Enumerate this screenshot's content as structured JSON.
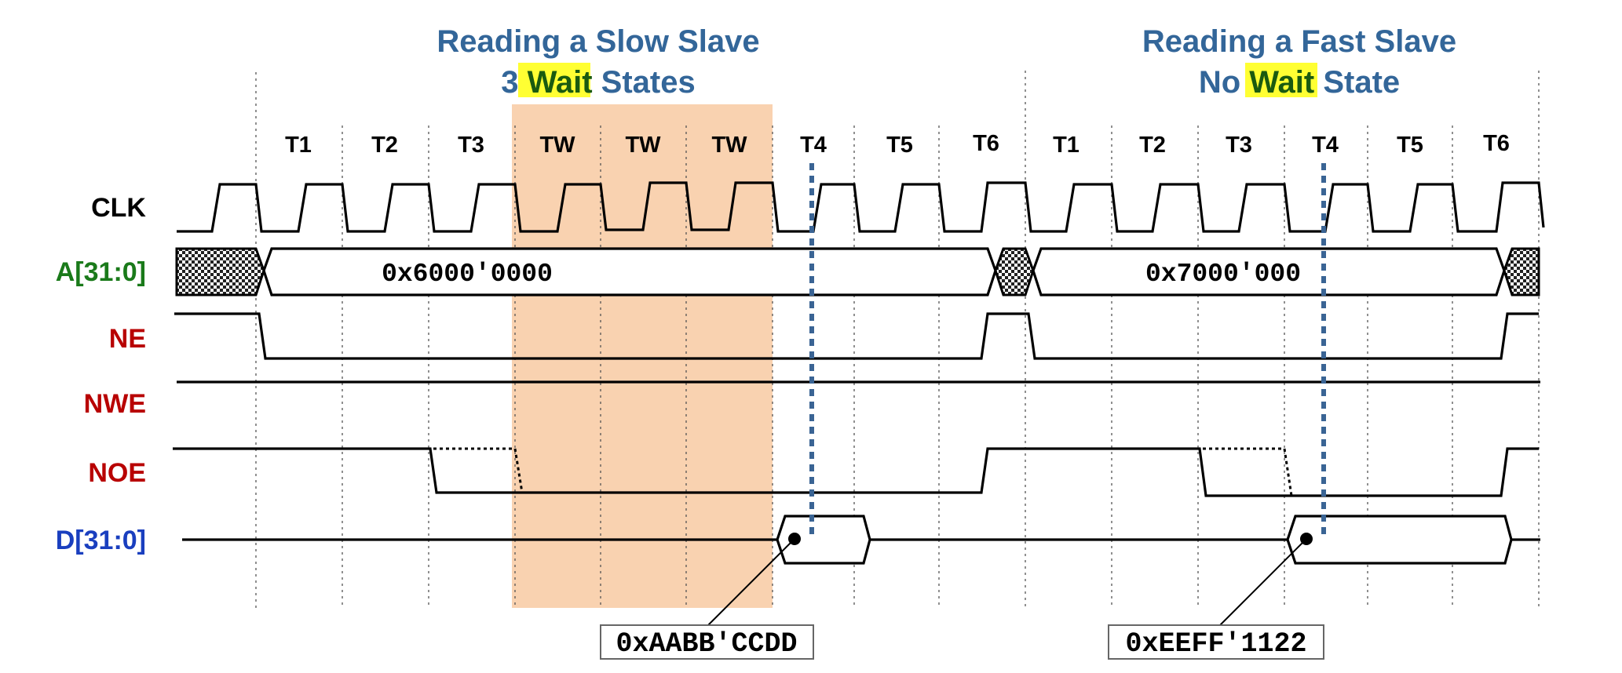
{
  "colors": {
    "title": "#336699",
    "address_signal": "#1a7a1a",
    "control_signal": "#b80000",
    "data_signal": "#1a3fbf",
    "wait_highlight": "#f9d2b0",
    "word_highlight": "#ffff33",
    "marker": "#3a6494"
  },
  "titles": {
    "slow": {
      "line1": "Reading a Slow Slave",
      "line2_pre": "3 ",
      "line2_highlight": "Wait",
      "line2_post": " States"
    },
    "fast": {
      "line1": "Reading a Fast Slave",
      "line2_pre": "No ",
      "line2_highlight": "Wait",
      "line2_post": " State"
    }
  },
  "cycles_slow": [
    "T1",
    "T2",
    "T3",
    "TW",
    "TW",
    "TW",
    "T4",
    "T5",
    "T6"
  ],
  "cycles_fast": [
    "T1",
    "T2",
    "T3",
    "T4",
    "T5",
    "T6"
  ],
  "signals": {
    "clk": "CLK",
    "addr": "A[31:0]",
    "ne": "NE",
    "nwe": "NWE",
    "noe": "NOE",
    "data": "D[31:0]"
  },
  "bus_values": {
    "addr_slow": "0x6000'0000",
    "addr_fast": "0x7000'000",
    "data_slow": "0xAABB'CCDD",
    "data_fast": "0xEEFF'1122"
  }
}
